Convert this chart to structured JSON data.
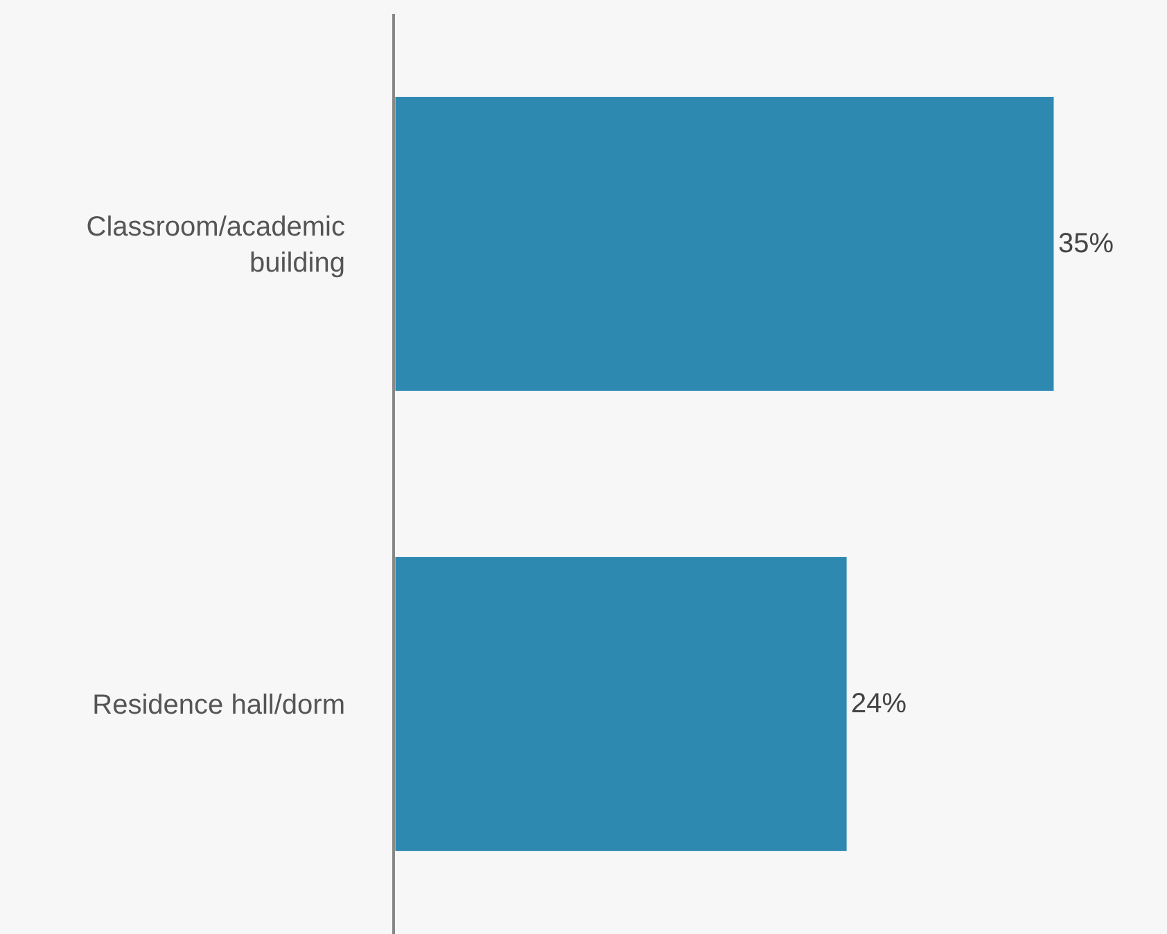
{
  "chart_data": {
    "type": "bar",
    "orientation": "horizontal",
    "categories": [
      "Classroom/academic building",
      "Residence hall/dorm"
    ],
    "values": [
      35,
      24
    ],
    "value_labels": [
      "35%",
      "24%"
    ],
    "color": "#2e89b0",
    "xlim": [
      0,
      41
    ],
    "tick_labels": "y",
    "grid": false,
    "legend": false
  }
}
